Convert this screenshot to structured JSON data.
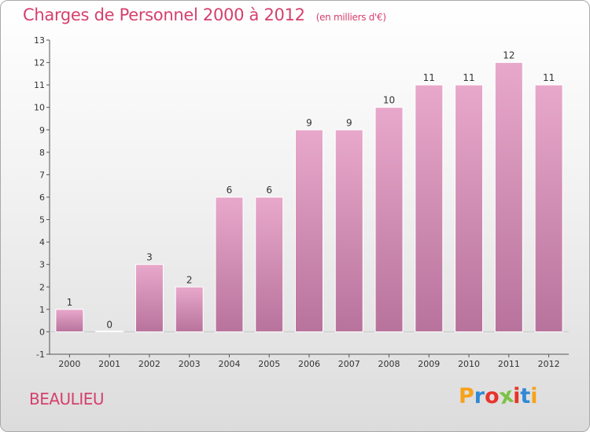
{
  "header": {
    "title": "Charges de Personnel 2000 à 2012",
    "subtitle": "(en milliers d'€)"
  },
  "footer": {
    "location": "BEAULIEU",
    "logo_letters": [
      "P",
      "r",
      "o",
      "x",
      "i",
      "t",
      "i"
    ],
    "logo_colors": [
      "#f7a21b",
      "#2f8ad6",
      "#e8332a",
      "#7cc242",
      "#e8332a",
      "#2f8ad6",
      "#f7a21b"
    ]
  },
  "colors": {
    "title": "#d63f6e",
    "bar_top": "#e8a8cb",
    "bar_bottom": "#b8739c",
    "axis": "#555555",
    "label": "#333333"
  },
  "chart_data": {
    "type": "bar",
    "categories": [
      "2000",
      "2001",
      "2002",
      "2003",
      "2004",
      "2005",
      "2006",
      "2007",
      "2008",
      "2009",
      "2010",
      "2011",
      "2012"
    ],
    "values": [
      1,
      0,
      3,
      2,
      6,
      6,
      9,
      9,
      10,
      11,
      11,
      12,
      11
    ],
    "data_labels": [
      "1",
      "0",
      "3",
      "2",
      "6",
      "6",
      "9",
      "9",
      "10",
      "11",
      "11",
      "12",
      "11"
    ],
    "title": "Charges de Personnel 2000 à 2012",
    "subtitle": "(en milliers d'€)",
    "xlabel": "",
    "ylabel": "",
    "ylim": [
      -1,
      13
    ],
    "yticks": [
      -1,
      0,
      1,
      2,
      3,
      4,
      5,
      6,
      7,
      8,
      9,
      10,
      11,
      12,
      13
    ],
    "grid": false,
    "legend": "none"
  }
}
